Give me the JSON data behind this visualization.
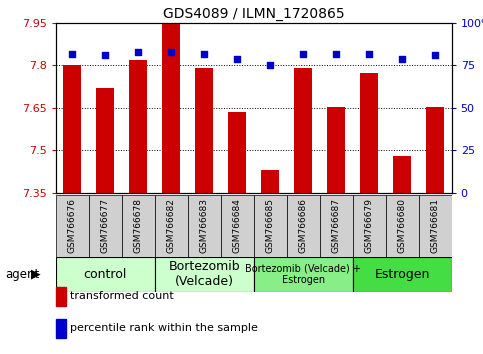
{
  "title": "GDS4089 / ILMN_1720865",
  "samples": [
    "GSM766676",
    "GSM766677",
    "GSM766678",
    "GSM766682",
    "GSM766683",
    "GSM766684",
    "GSM766685",
    "GSM766686",
    "GSM766687",
    "GSM766679",
    "GSM766680",
    "GSM766681"
  ],
  "bar_values": [
    7.8,
    7.72,
    7.82,
    7.95,
    7.79,
    7.635,
    7.43,
    7.79,
    7.655,
    7.775,
    7.48,
    7.655
  ],
  "percentile_values": [
    82,
    81,
    83,
    83,
    82,
    79,
    75,
    82,
    82,
    82,
    79,
    81
  ],
  "bar_color": "#cc0000",
  "dot_color": "#0000cc",
  "ymin": 7.35,
  "ymax": 7.95,
  "y2min": 0,
  "y2max": 100,
  "yticks": [
    7.35,
    7.5,
    7.65,
    7.8,
    7.95
  ],
  "y2ticks": [
    0,
    25,
    50,
    75,
    100
  ],
  "ytick_labels": [
    "7.35",
    "7.5",
    "7.65",
    "7.8",
    "7.95"
  ],
  "y2tick_labels": [
    "0",
    "25",
    "50",
    "75",
    "100%"
  ],
  "groups": [
    {
      "label": "control",
      "start": 0,
      "end": 3,
      "color": "#ccffcc",
      "fontsize": 9
    },
    {
      "label": "Bortezomib\n(Velcade)",
      "start": 3,
      "end": 6,
      "color": "#ccffcc",
      "fontsize": 9
    },
    {
      "label": "Bortezomib (Velcade) +\nEstrogen",
      "start": 6,
      "end": 9,
      "color": "#88ee88",
      "fontsize": 7
    },
    {
      "label": "Estrogen",
      "start": 9,
      "end": 12,
      "color": "#44dd44",
      "fontsize": 9
    }
  ],
  "xlabel_agent": "agent",
  "legend_bar": "transformed count",
  "legend_dot": "percentile rank within the sample",
  "bar_color_hex": "#cc0000",
  "dot_color_hex": "#0000cc",
  "tick_label_color_left": "#cc0000",
  "tick_label_color_right": "#0000cc",
  "xtick_bg": "#d0d0d0"
}
